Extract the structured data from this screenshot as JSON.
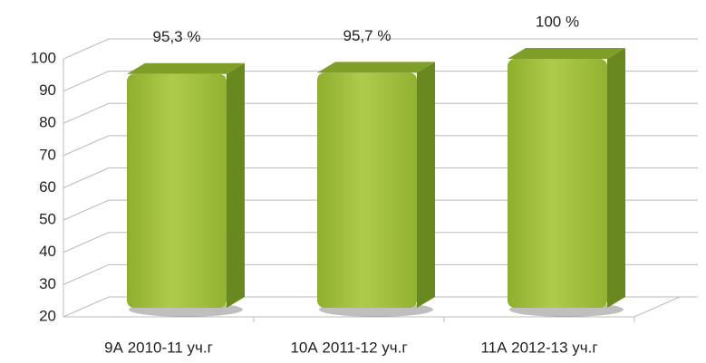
{
  "chart_data": {
    "type": "bar3d",
    "categories": [
      "9А 2010-11 уч.г",
      "10А 2011-12 уч.г",
      "11А 2012-13 уч.г"
    ],
    "values": [
      95.3,
      95.7,
      100
    ],
    "value_labels": [
      "95,3 %",
      "95,7 %",
      "100 %"
    ],
    "color": "#9dbb3c",
    "ylim": [
      20,
      100
    ],
    "yticks": [
      20,
      30,
      40,
      50,
      60,
      70,
      80,
      90,
      100
    ],
    "grid": true
  }
}
